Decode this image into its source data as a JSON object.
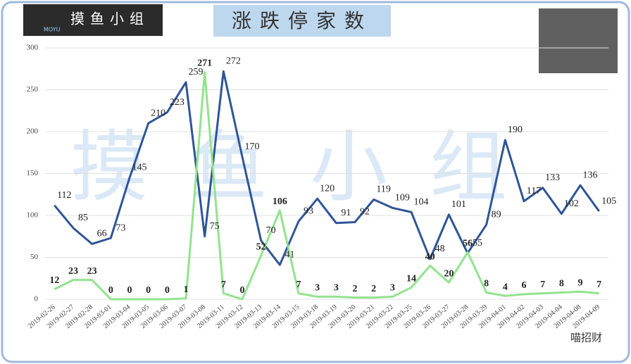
{
  "chart_data": {
    "type": "line",
    "title": "涨跌停家数",
    "logo": "摸鱼小组",
    "logo_sub": "MOYU",
    "watermark": "摸鱼小组",
    "footer": "喵招财",
    "categories": [
      "2019-02-26",
      "2019-02-27",
      "2019-02-28",
      "2019-03-01",
      "2019-03-04",
      "2019-03-05",
      "2019-03-06",
      "2019-03-07",
      "2019-03-08",
      "2019-03-11",
      "2019-03-12",
      "2019-03-13",
      "2019-03-14",
      "2019-03-15",
      "2019-03-18",
      "2019-03-19",
      "2019-03-20",
      "2019-03-21",
      "2019-03-22",
      "2019-03-25",
      "2019-03-26",
      "2019-03-27",
      "2019-03-28",
      "2019-03-29",
      "2019-04-01",
      "2019-04-02",
      "2019-04-03",
      "2019-04-04",
      "2019-04-08",
      "2019-04-09"
    ],
    "series": [
      {
        "name": null,
        "color": "#2f5597",
        "values": [
          112,
          85,
          66,
          73,
          145,
          210,
          223,
          259,
          75,
          272,
          170,
          70,
          41,
          93,
          120,
          91,
          92,
          119,
          109,
          104,
          48,
          101,
          55,
          89,
          190,
          117,
          133,
          102,
          136,
          105
        ]
      },
      {
        "name": null,
        "color": "#92e38e",
        "values": [
          12,
          23,
          23,
          0,
          0,
          0,
          0,
          1,
          271,
          7,
          0,
          52,
          106,
          7,
          3,
          3,
          2,
          2,
          3,
          14,
          40,
          20,
          56,
          8,
          4,
          6,
          7,
          8,
          9,
          7
        ]
      }
    ],
    "ylim": [
      0,
      300
    ],
    "yticks": [
      0,
      50,
      100,
      150,
      200,
      250,
      300
    ],
    "grid": true
  }
}
